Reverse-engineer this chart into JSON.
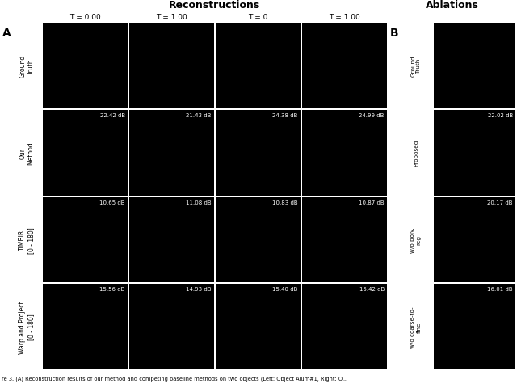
{
  "title_left": "Reconstructions",
  "title_right": "Ablations",
  "col_headers_left": [
    "T = 0.00",
    "T = 1.00",
    "T = 0",
    "T = 1.00"
  ],
  "row_labels_left": [
    "Ground\nTruth",
    "Our\nMethod",
    "TIMBIR\n[0 - 180]",
    "Warp and Project\n[0 - 180]"
  ],
  "row_labels_right": [
    "Ground\nTruth",
    "Proposed",
    "w/o poly.\nreg",
    "w/o coarse-to-\nfine"
  ],
  "label_A": "A",
  "label_B": "B",
  "dB_values": {
    "row1": [
      "22.42 dB",
      "21.43 dB",
      "24.38 dB",
      "24.99 dB"
    ],
    "row2": [
      "10.65 dB",
      "11.08 dB",
      "10.83 dB",
      "10.87 dB"
    ],
    "row3": [
      "15.56 dB",
      "14.93 dB",
      "15.40 dB",
      "15.42 dB"
    ]
  },
  "dB_right": [
    "22.02 dB",
    "20.17 dB",
    "16.01 dB"
  ],
  "fig_bg": "#f0f0f0",
  "panel_bg": "#000000",
  "caption": "re 3. (A) Reconstruction results of our method and competing baseline methods on two objects (Left: Object Alum#1, Right: O..."
}
